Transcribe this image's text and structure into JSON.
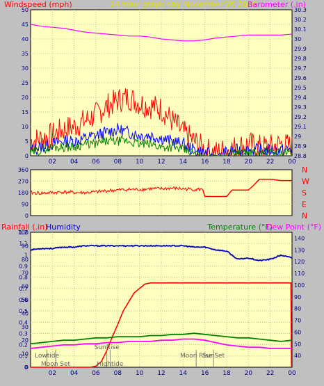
{
  "header": {
    "left_title": "Windspeed (mph)",
    "center_title": "24 hour graph day   November 26 2020",
    "right_title": "Barometer (.in)"
  },
  "colors": {
    "background": "#c0c0c0",
    "plot_bg": "#ffffc0",
    "wind": "#ff0000",
    "gust_blue": "#0000ff",
    "avg_green": "#008000",
    "barometer": "#ff00ff",
    "direction": "#ff0000",
    "rain": "#ff0000",
    "humidity": "#0000c0",
    "temperature": "#008000",
    "dewpoint": "#ff00ff",
    "markers": "#808080"
  },
  "chart_data": [
    {
      "type": "line",
      "panel": "wind_barometer",
      "title": "24 hour graph day   November 26 2020",
      "ylabel_left": "Windspeed (mph)",
      "ylabel_right": "Barometer (.in)",
      "x_ticks": [
        "02",
        "04",
        "06",
        "08",
        "10",
        "12",
        "14",
        "16",
        "18",
        "20",
        "22",
        "00"
      ],
      "ylim_left": [
        0,
        50
      ],
      "y_ticks_left": [
        "0",
        "5",
        "10",
        "15",
        "20",
        "25",
        "30",
        "35",
        "40",
        "45",
        "50"
      ],
      "ylim_right": [
        28.8,
        30.3
      ],
      "y_ticks_right": [
        "28.8",
        "28.9",
        "29",
        "29.1",
        "29.2",
        "29.3",
        "29.4",
        "29.5",
        "29.6",
        "29.7",
        "29.8",
        "29.9",
        "30",
        "30.1",
        "30.2",
        "30.3"
      ],
      "grid": true,
      "series": [
        {
          "key": "barometer",
          "axis": "right",
          "x": [
            0,
            1,
            2,
            3,
            4,
            5,
            6,
            7,
            8,
            9,
            10,
            11,
            12,
            13,
            14,
            15,
            16,
            17,
            18,
            19,
            20,
            21,
            22,
            23,
            24
          ],
          "values": [
            30.15,
            30.13,
            30.12,
            30.11,
            30.09,
            30.07,
            30.06,
            30.05,
            30.04,
            30.03,
            30.03,
            30.02,
            30.0,
            29.99,
            29.98,
            29.98,
            29.99,
            30.01,
            30.02,
            30.03,
            30.04,
            30.04,
            30.04,
            30.04,
            30.05
          ]
        },
        {
          "key": "gust",
          "axis": "left",
          "x": [
            0,
            1,
            2,
            3,
            4,
            5,
            6,
            7,
            8,
            9,
            10,
            11,
            12,
            13,
            14,
            15,
            16,
            17,
            18,
            19,
            20,
            21,
            22,
            23,
            24
          ],
          "values": [
            5,
            6,
            7,
            9,
            10,
            12,
            14,
            17,
            19,
            20,
            18,
            17,
            16,
            12,
            8,
            5,
            2,
            1,
            2,
            3,
            4,
            3,
            3,
            4,
            3
          ]
        },
        {
          "key": "wind_mid",
          "axis": "left",
          "x": [
            0,
            1,
            2,
            3,
            4,
            5,
            6,
            7,
            8,
            9,
            10,
            11,
            12,
            13,
            14,
            15,
            16,
            17,
            18,
            19,
            20,
            21,
            22,
            23,
            24
          ],
          "values": [
            2,
            3,
            4,
            5,
            5,
            6,
            7,
            8,
            9,
            8,
            7,
            7,
            6,
            5,
            4,
            2,
            1,
            0,
            1,
            2,
            2,
            2,
            2,
            2,
            2
          ]
        },
        {
          "key": "wind_avg",
          "axis": "left",
          "x": [
            0,
            1,
            2,
            3,
            4,
            5,
            6,
            7,
            8,
            9,
            10,
            11,
            12,
            13,
            14,
            15,
            16,
            17,
            18,
            19,
            20,
            21,
            22,
            23,
            24
          ],
          "values": [
            1,
            2,
            3,
            3,
            3,
            4,
            4,
            5,
            5,
            5,
            4,
            4,
            3,
            3,
            2,
            1,
            0,
            0,
            0,
            1,
            1,
            1,
            1,
            1,
            1
          ]
        }
      ]
    },
    {
      "type": "line",
      "panel": "wind_direction",
      "x_ticks": [],
      "ylim": [
        0,
        360
      ],
      "y_ticks": [
        "0",
        "90",
        "180",
        "270",
        "360"
      ],
      "right_labels": [
        "N",
        "W",
        "S",
        "E",
        "N"
      ],
      "grid": true,
      "series": [
        {
          "key": "direction",
          "x": [
            0,
            1,
            2,
            3,
            4,
            5,
            6,
            7,
            8,
            9,
            10,
            11,
            12,
            13,
            14,
            15,
            15.8,
            16,
            17,
            18,
            18.5,
            19,
            20,
            20.5,
            21,
            22,
            23,
            24
          ],
          "values": [
            180,
            175,
            180,
            185,
            180,
            180,
            185,
            195,
            200,
            205,
            205,
            210,
            210,
            215,
            210,
            205,
            205,
            150,
            150,
            150,
            200,
            200,
            200,
            240,
            285,
            285,
            275,
            275
          ]
        }
      ]
    },
    {
      "type": "line",
      "panel": "rain_humidity_temperature",
      "ylabel_left_1": "Rainfall (.in)",
      "ylabel_left_2": "Humidity",
      "ylabel_right_1": "Temperature (°F)",
      "ylabel_right_2": "Dew Point (°F)",
      "x_ticks": [
        "02",
        "04",
        "06",
        "08",
        "10",
        "12",
        "14",
        "16",
        "18",
        "20",
        "22",
        "00"
      ],
      "ylim_rain": [
        0,
        1.2
      ],
      "y_ticks_rain": [
        "0",
        "0.1",
        "0.2",
        "0.3",
        "0.4",
        "0.5",
        "0.6",
        "0.7",
        "0.8",
        "0.9",
        "1",
        "1.1",
        "1.2"
      ],
      "ylim_humidity": [
        0,
        100
      ],
      "y_ticks_humidity": [
        "0",
        "10",
        "20",
        "30",
        "40",
        "50",
        "60",
        "70",
        "80",
        "90",
        "100"
      ],
      "ylim_temp": [
        30,
        145
      ],
      "y_ticks_temp": [
        "40",
        "50",
        "60",
        "70",
        "80",
        "90",
        "100",
        "110",
        "120",
        "130",
        "140"
      ],
      "grid": true,
      "series": [
        {
          "key": "rain",
          "axis": "rain",
          "x": [
            0,
            5.5,
            6,
            6.5,
            7,
            7.5,
            8,
            8.5,
            9,
            9.5,
            10,
            10.5,
            11,
            12,
            14,
            16,
            18,
            20,
            22,
            23.9,
            23.95
          ],
          "values": [
            0,
            0,
            0.01,
            0.05,
            0.15,
            0.27,
            0.38,
            0.5,
            0.58,
            0.66,
            0.7,
            0.74,
            0.75,
            0.75,
            0.75,
            0.75,
            0.75,
            0.75,
            0.75,
            0.75,
            0
          ]
        },
        {
          "key": "humidity",
          "axis": "humidity",
          "x": [
            0,
            1,
            2,
            3,
            4,
            5,
            6,
            7,
            8,
            9,
            10,
            11,
            12,
            13,
            14,
            15,
            16,
            17,
            18,
            19,
            20,
            21,
            22,
            23,
            24
          ],
          "values": [
            87,
            88,
            88,
            89,
            89,
            90,
            90,
            90,
            90,
            90,
            90,
            90,
            90,
            90,
            90,
            89,
            89,
            87,
            86,
            80,
            81,
            79,
            80,
            83,
            81
          ]
        },
        {
          "key": "temperature",
          "axis": "temp",
          "x": [
            0,
            1,
            2,
            3,
            4,
            5,
            6,
            7,
            8,
            9,
            10,
            11,
            12,
            13,
            14,
            15,
            16,
            17,
            18,
            19,
            20,
            21,
            22,
            23,
            24
          ],
          "values": [
            50,
            51,
            52,
            53,
            53,
            54,
            55,
            55,
            56,
            56,
            56,
            57,
            57,
            58,
            58,
            59,
            58,
            57,
            56,
            55,
            55,
            54,
            53,
            52,
            53
          ]
        },
        {
          "key": "dewpoint",
          "axis": "temp",
          "x": [
            0,
            1,
            2,
            3,
            4,
            5,
            6,
            7,
            8,
            9,
            10,
            11,
            12,
            13,
            14,
            15,
            16,
            17,
            18,
            19,
            20,
            21,
            22,
            23,
            24
          ],
          "values": [
            46,
            47,
            48,
            49,
            49,
            50,
            50,
            51,
            51,
            52,
            52,
            52,
            53,
            53,
            54,
            54,
            53,
            51,
            49,
            48,
            47,
            47,
            46,
            46,
            46
          ]
        }
      ],
      "markers": [
        {
          "hour": 1.5,
          "label": "Lowtide"
        },
        {
          "hour": 2.3,
          "label": "Moon Set"
        },
        {
          "hour": 7.0,
          "label": "SunRise"
        },
        {
          "hour": 7.3,
          "label": "Hightide"
        },
        {
          "hour": 15.2,
          "label": "Moon Rise"
        },
        {
          "hour": 16.8,
          "label": "SunSet"
        }
      ]
    }
  ]
}
